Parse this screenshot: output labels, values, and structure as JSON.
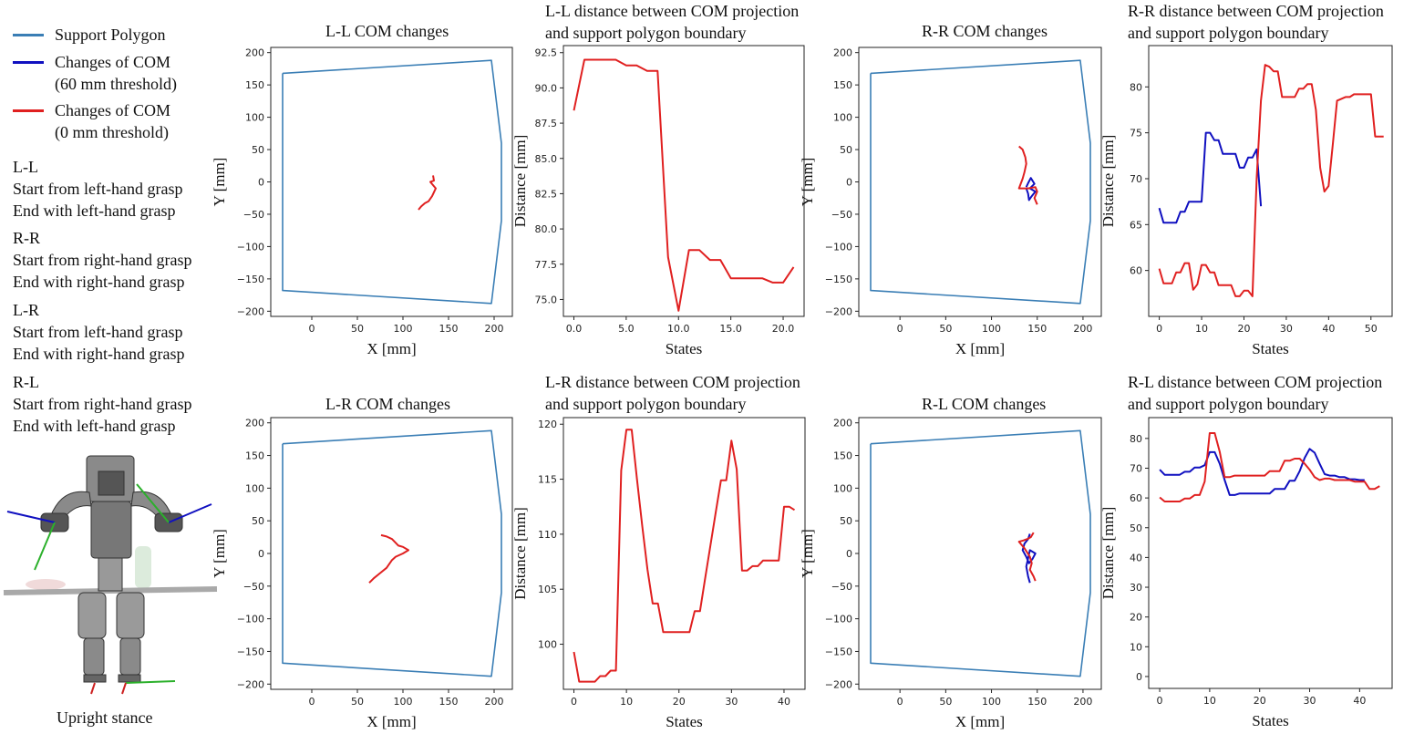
{
  "legend": {
    "items": [
      {
        "label_lines": [
          "Support Polygon"
        ],
        "color": "#3a7eb5"
      },
      {
        "label_lines": [
          "Changes of COM",
          "(60 mm threshold)"
        ],
        "color": "#1010c0"
      },
      {
        "label_lines": [
          "Changes of COM",
          "(0 mm threshold)"
        ],
        "color": "#e02020"
      }
    ]
  },
  "descriptions": [
    {
      "code": "L-L",
      "line1": "Start from left-hand grasp",
      "line2": "End with left-hand grasp"
    },
    {
      "code": "R-R",
      "line1": "Start from right-hand grasp",
      "line2": "End with right-hand grasp"
    },
    {
      "code": "L-R",
      "line1": "Start from left-hand grasp",
      "line2": "End with right-hand grasp"
    },
    {
      "code": "R-L",
      "line1": "Start from right-hand grasp",
      "line2": "End with left-hand grasp"
    }
  ],
  "robot_caption": "Upright stance",
  "colors": {
    "polygon": "#3a7eb5",
    "blue": "#1010c0",
    "red": "#e02020"
  },
  "chart_data": [
    {
      "type": "line",
      "id": "ll-com",
      "title_lines": [
        "L-L COM changes"
      ],
      "xlabel": "X [mm]",
      "ylabel": "Y [mm]",
      "xlim": [
        -45,
        220
      ],
      "ylim": [
        -208,
        208
      ],
      "xticks": [
        0,
        50,
        100,
        150,
        200
      ],
      "yticks": [
        -200,
        -150,
        -100,
        -50,
        0,
        50,
        100,
        150,
        200
      ],
      "series": [
        {
          "name": "Support Polygon",
          "color": "polygon",
          "x": [
            -32,
            197,
            208,
            208,
            197,
            -32,
            -32
          ],
          "y": [
            168,
            188,
            60,
            -60,
            -188,
            -168,
            168
          ]
        },
        {
          "name": "Changes of COM (0 mm threshold)",
          "color": "red",
          "x": [
            133,
            134,
            130,
            136,
            132,
            128,
            124,
            120,
            117
          ],
          "y": [
            10,
            2,
            0,
            -10,
            -22,
            -30,
            -33,
            -38,
            -43
          ]
        }
      ]
    },
    {
      "type": "line",
      "id": "ll-dist",
      "title_lines": [
        "L-L distance between COM projection",
        "and support polygon boundary"
      ],
      "xlabel": "States",
      "ylabel": "Distance [mm]",
      "xlim": [
        -1,
        22
      ],
      "ylim": [
        73.8,
        93.0
      ],
      "xticks": [
        0,
        5,
        10,
        15,
        20
      ],
      "yticks": [
        75.0,
        77.5,
        80.0,
        82.5,
        85.0,
        87.5,
        90.0,
        92.5
      ],
      "tick_format": "fixed1",
      "series": [
        {
          "name": "Changes of COM (0 mm threshold)",
          "color": "red",
          "x": [
            0,
            1,
            2,
            3,
            4,
            5,
            6,
            7,
            8,
            9,
            10,
            11,
            12,
            13,
            14,
            15,
            16,
            17,
            18,
            19,
            20,
            21
          ],
          "y": [
            88.4,
            92.0,
            92.0,
            92.0,
            92.0,
            91.6,
            91.6,
            91.2,
            91.2,
            78.0,
            74.2,
            78.5,
            78.5,
            77.8,
            77.8,
            76.5,
            76.5,
            76.5,
            76.5,
            76.2,
            76.2,
            77.3
          ]
        }
      ]
    },
    {
      "type": "line",
      "id": "rr-com",
      "title_lines": [
        "R-R COM changes"
      ],
      "xlabel": "X [mm]",
      "ylabel": "Y [mm]",
      "xlim": [
        -45,
        220
      ],
      "ylim": [
        -208,
        208
      ],
      "xticks": [
        0,
        50,
        100,
        150,
        200
      ],
      "yticks": [
        -200,
        -150,
        -100,
        -50,
        0,
        50,
        100,
        150,
        200
      ],
      "series": [
        {
          "name": "Support Polygon",
          "color": "polygon",
          "x": [
            -32,
            197,
            208,
            208,
            197,
            -32,
            -32
          ],
          "y": [
            168,
            188,
            60,
            -60,
            -188,
            -168,
            168
          ]
        },
        {
          "name": "Changes of COM (60 mm threshold)",
          "color": "blue",
          "x": [
            138,
            140,
            143,
            147,
            142,
            148,
            144,
            141,
            140,
            138
          ],
          "y": [
            -8,
            -2,
            6,
            -3,
            -10,
            -15,
            -22,
            -28,
            -18,
            -10
          ]
        },
        {
          "name": "Changes of COM (0 mm threshold)",
          "color": "red",
          "x": [
            130,
            134,
            137,
            138,
            136,
            134,
            130,
            140,
            148,
            150,
            147,
            150
          ],
          "y": [
            55,
            50,
            38,
            28,
            15,
            5,
            -10,
            -10,
            -8,
            -15,
            -25,
            -35
          ]
        }
      ]
    },
    {
      "type": "line",
      "id": "rr-dist",
      "title_lines": [
        "R-R distance between COM projection",
        "and support polygon boundary"
      ],
      "xlabel": "States",
      "ylabel": "Distance [mm]",
      "xlim": [
        -2.5,
        55
      ],
      "ylim": [
        55.0,
        84.5
      ],
      "xticks": [
        0,
        10,
        20,
        30,
        40,
        50
      ],
      "yticks": [
        60,
        65,
        70,
        75,
        80
      ],
      "series": [
        {
          "name": "Changes of COM (60 mm threshold)",
          "color": "blue",
          "x": [
            0,
            1,
            2,
            3,
            4,
            5,
            6,
            7,
            8,
            9,
            10,
            11,
            12,
            13,
            14,
            15,
            16,
            17,
            18,
            19,
            20,
            21,
            22,
            23,
            24
          ],
          "y": [
            66.8,
            65.2,
            65.2,
            65.2,
            65.2,
            66.4,
            66.4,
            67.5,
            67.5,
            67.5,
            67.5,
            75.0,
            75.0,
            74.2,
            74.2,
            72.7,
            72.7,
            72.7,
            72.7,
            71.2,
            71.2,
            72.3,
            72.3,
            73.2,
            67.0
          ]
        },
        {
          "name": "Changes of COM (0 mm threshold)",
          "color": "red",
          "x": [
            0,
            1,
            2,
            3,
            4,
            5,
            6,
            7,
            8,
            9,
            10,
            11,
            12,
            13,
            14,
            15,
            16,
            17,
            18,
            19,
            20,
            21,
            22,
            23,
            24,
            25,
            26,
            27,
            28,
            29,
            30,
            31,
            32,
            33,
            34,
            35,
            36,
            37,
            38,
            39,
            40,
            41,
            42,
            43,
            44,
            45,
            46,
            47,
            48,
            49,
            50,
            51,
            52,
            53
          ],
          "y": [
            60.2,
            58.6,
            58.6,
            58.6,
            59.8,
            59.8,
            60.8,
            60.8,
            57.9,
            58.5,
            60.6,
            60.6,
            59.8,
            59.8,
            58.4,
            58.4,
            58.4,
            58.4,
            57.2,
            57.2,
            57.8,
            57.8,
            57.2,
            70.0,
            78.5,
            82.4,
            82.2,
            81.7,
            81.7,
            78.9,
            78.9,
            78.9,
            78.9,
            79.8,
            79.8,
            80.3,
            80.3,
            77.5,
            71.2,
            68.6,
            69.2,
            73.8,
            78.5,
            78.7,
            78.9,
            78.9,
            79.2,
            79.2,
            79.2,
            79.2,
            79.2,
            74.6,
            74.6,
            74.6
          ]
        }
      ]
    },
    {
      "type": "line",
      "id": "lr-com",
      "title_lines": [
        "L-R COM changes"
      ],
      "xlabel": "X [mm]",
      "ylabel": "Y [mm]",
      "xlim": [
        -45,
        220
      ],
      "ylim": [
        -208,
        208
      ],
      "xticks": [
        0,
        50,
        100,
        150,
        200
      ],
      "yticks": [
        -200,
        -150,
        -100,
        -50,
        0,
        50,
        100,
        150,
        200
      ],
      "series": [
        {
          "name": "Support Polygon",
          "color": "polygon",
          "x": [
            -32,
            197,
            208,
            208,
            197,
            -32,
            -32
          ],
          "y": [
            168,
            188,
            60,
            -60,
            -188,
            -168,
            168
          ]
        },
        {
          "name": "Changes of COM (0 mm threshold)",
          "color": "red",
          "x": [
            76,
            82,
            88,
            95,
            100,
            106,
            100,
            92,
            88,
            82,
            75,
            68,
            63
          ],
          "y": [
            28,
            26,
            22,
            12,
            10,
            5,
            0,
            -5,
            -10,
            -22,
            -30,
            -38,
            -45
          ]
        }
      ]
    },
    {
      "type": "line",
      "id": "lr-dist",
      "title_lines": [
        "L-R distance between COM projection",
        "and support polygon boundary"
      ],
      "xlabel": "States",
      "ylabel": "Distance [mm]",
      "xlim": [
        -2,
        44
      ],
      "ylim": [
        95.9,
        120.6
      ],
      "xticks": [
        0,
        10,
        20,
        30,
        40
      ],
      "yticks": [
        100,
        105,
        110,
        115,
        120
      ],
      "series": [
        {
          "name": "Changes of COM (0 mm threshold)",
          "color": "red",
          "x": [
            0,
            1,
            2,
            3,
            4,
            5,
            6,
            7,
            8,
            9,
            10,
            11,
            12,
            13,
            14,
            15,
            16,
            17,
            18,
            19,
            20,
            21,
            22,
            23,
            24,
            25,
            26,
            27,
            28,
            29,
            30,
            31,
            32,
            33,
            34,
            35,
            36,
            37,
            38,
            39,
            40,
            41,
            42
          ],
          "y": [
            99.3,
            96.6,
            96.6,
            96.6,
            96.6,
            97.1,
            97.1,
            97.6,
            97.6,
            115.8,
            119.5,
            119.5,
            115.0,
            110.8,
            106.8,
            103.7,
            103.7,
            101.1,
            101.1,
            101.1,
            101.1,
            101.1,
            101.1,
            103.0,
            103.0,
            106.0,
            109.0,
            112.0,
            114.9,
            114.9,
            118.5,
            115.9,
            106.7,
            106.7,
            107.1,
            107.1,
            107.6,
            107.6,
            107.6,
            107.6,
            112.5,
            112.5,
            112.2
          ]
        }
      ]
    },
    {
      "type": "line",
      "id": "rl-com",
      "title_lines": [
        "R-L COM changes"
      ],
      "xlabel": "X [mm]",
      "ylabel": "Y [mm]",
      "xlim": [
        -45,
        220
      ],
      "ylim": [
        -208,
        208
      ],
      "xticks": [
        0,
        50,
        100,
        150,
        200
      ],
      "yticks": [
        -200,
        -150,
        -100,
        -50,
        0,
        50,
        100,
        150,
        200
      ],
      "series": [
        {
          "name": "Support Polygon",
          "color": "polygon",
          "x": [
            -32,
            197,
            208,
            208,
            197,
            -32,
            -32
          ],
          "y": [
            168,
            188,
            60,
            -60,
            -188,
            -168,
            168
          ]
        },
        {
          "name": "Changes of COM (60 mm threshold)",
          "color": "blue",
          "x": [
            142,
            140,
            136,
            134,
            138,
            141,
            145,
            148,
            142,
            138,
            140,
            142
          ],
          "y": [
            30,
            22,
            15,
            5,
            -5,
            -15,
            -8,
            0,
            5,
            -20,
            -35,
            -45
          ]
        },
        {
          "name": "Changes of COM (0 mm threshold)",
          "color": "red",
          "x": [
            146,
            143,
            139,
            135,
            130,
            136,
            142,
            144,
            142,
            146,
            148
          ],
          "y": [
            32,
            25,
            22,
            20,
            18,
            8,
            -5,
            -15,
            -25,
            -35,
            -42
          ]
        }
      ]
    },
    {
      "type": "line",
      "id": "rl-dist",
      "title_lines": [
        "R-L distance between COM projection",
        "and support polygon boundary"
      ],
      "xlabel": "States",
      "ylabel": "Distance [mm]",
      "xlim": [
        -2.2,
        46.5
      ],
      "ylim": [
        -4.0,
        87.0
      ],
      "xticks": [
        0,
        10,
        20,
        30,
        40
      ],
      "yticks": [
        0,
        10,
        20,
        30,
        40,
        50,
        60,
        70,
        80
      ],
      "series": [
        {
          "name": "Changes of COM (60 mm threshold)",
          "color": "blue",
          "x": [
            0,
            1,
            2,
            3,
            4,
            5,
            6,
            7,
            8,
            9,
            10,
            11,
            12,
            13,
            14,
            15,
            16,
            17,
            18,
            19,
            20,
            21,
            22,
            23,
            24,
            25,
            26,
            27,
            28,
            29,
            30,
            31,
            32,
            33,
            34,
            35,
            36,
            37,
            38,
            39,
            40,
            41
          ],
          "y": [
            69.5,
            67.8,
            67.8,
            67.8,
            67.8,
            68.8,
            68.8,
            70.2,
            70.2,
            71.0,
            75.4,
            75.4,
            71.5,
            66.0,
            61.0,
            61.0,
            61.5,
            61.5,
            61.5,
            61.5,
            61.5,
            61.5,
            61.5,
            63.0,
            63.0,
            63.0,
            65.8,
            65.8,
            69.0,
            73.5,
            76.5,
            75.2,
            71.5,
            68.0,
            67.5,
            67.5,
            67.0,
            67.0,
            66.3,
            66.3,
            66.0,
            66.0
          ]
        },
        {
          "name": "Changes of COM (0 mm threshold)",
          "color": "red",
          "x": [
            0,
            1,
            2,
            3,
            4,
            5,
            6,
            7,
            8,
            9,
            10,
            11,
            12,
            13,
            14,
            15,
            16,
            17,
            18,
            19,
            20,
            21,
            22,
            23,
            24,
            25,
            26,
            27,
            28,
            29,
            30,
            31,
            32,
            33,
            34,
            35,
            36,
            37,
            38,
            39,
            40,
            41,
            42,
            43,
            44
          ],
          "y": [
            60.2,
            58.8,
            58.8,
            58.8,
            58.8,
            59.8,
            59.8,
            61.0,
            61.0,
            65.5,
            81.8,
            81.8,
            75.5,
            67.0,
            67.0,
            67.5,
            67.5,
            67.5,
            67.5,
            67.5,
            67.5,
            67.5,
            69.0,
            69.0,
            69.0,
            72.5,
            72.5,
            73.2,
            73.2,
            71.5,
            69.5,
            67.0,
            66.0,
            66.5,
            66.5,
            66.0,
            66.0,
            66.0,
            66.0,
            65.5,
            65.5,
            65.5,
            63.0,
            63.0,
            64.0
          ]
        }
      ]
    }
  ]
}
